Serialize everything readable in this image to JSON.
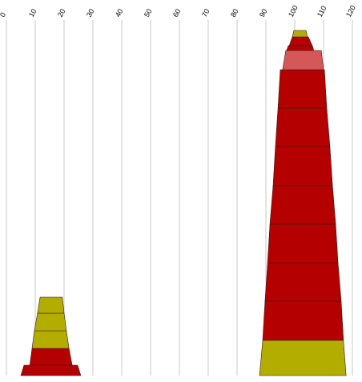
{
  "chart_data": {
    "type": "pyramid",
    "xlim": [
      0,
      120
    ],
    "xticks": [
      0,
      10,
      20,
      30,
      40,
      50,
      60,
      70,
      80,
      90,
      100,
      110,
      120
    ],
    "grid": true,
    "stacks": [
      {
        "layers": [
          {
            "color": "#b50000",
            "height": 13,
            "bottom": [
              5.0,
              25.8
            ],
            "top": [
              6.1,
              24.7
            ]
          },
          {
            "color": "#b50000",
            "height": 21,
            "bottom": [
              8.1,
              22.8
            ],
            "top": [
              8.9,
              21.7
            ]
          },
          {
            "color": "#b3ad00",
            "height": 22,
            "bottom": [
              8.9,
              21.7
            ],
            "top": [
              9.7,
              20.8
            ]
          },
          {
            "color": "#b3ad00",
            "height": 22,
            "bottom": [
              9.7,
              20.8
            ],
            "top": [
              10.8,
              20.0
            ]
          },
          {
            "color": "#b3ad00",
            "height": 20,
            "bottom": [
              10.8,
              20.0
            ],
            "top": [
              11.7,
              19.4
            ]
          }
        ]
      },
      {
        "layers": [
          {
            "color": "#b3ad00",
            "height": 44,
            "bottom": [
              87.8,
              117.8
            ],
            "top": [
              88.9,
              116.9
            ]
          },
          {
            "color": "#b50000",
            "height": 49,
            "bottom": [
              88.9,
              116.9
            ],
            "top": [
              89.7,
              116.1
            ]
          },
          {
            "color": "#b50000",
            "height": 48,
            "bottom": [
              89.7,
              116.1
            ],
            "top": [
              90.6,
              115.0
            ]
          },
          {
            "color": "#b50000",
            "height": 48,
            "bottom": [
              90.6,
              115.0
            ],
            "top": [
              91.4,
              114.2
            ]
          },
          {
            "color": "#b50000",
            "height": 48,
            "bottom": [
              91.4,
              114.2
            ],
            "top": [
              92.5,
              113.1
            ]
          },
          {
            "color": "#b50000",
            "height": 49,
            "bottom": [
              92.5,
              113.1
            ],
            "top": [
              93.3,
              112.2
            ]
          },
          {
            "color": "#b50000",
            "height": 48,
            "bottom": [
              93.3,
              112.2
            ],
            "top": [
              94.2,
              111.1
            ]
          },
          {
            "color": "#b50000",
            "height": 48,
            "bottom": [
              94.2,
              111.1
            ],
            "top": [
              95.0,
              110.3
            ]
          },
          {
            "color": "#d45858",
            "height": 24,
            "bottom": [
              95.8,
              110.0
            ],
            "top": [
              96.9,
              109.2
            ]
          },
          {
            "color": "#b50000",
            "height": 6,
            "bottom": [
              97.2,
              106.6
            ],
            "top": [
              97.8,
              106.1
            ]
          },
          {
            "color": "#b50000",
            "height": 11,
            "bottom": [
              98.1,
              106.1
            ],
            "top": [
              99.2,
              104.7
            ]
          },
          {
            "color": "#b3ad00",
            "height": 8,
            "bottom": [
              99.2,
              104.4
            ],
            "top": [
              99.7,
              103.9
            ]
          }
        ]
      }
    ]
  }
}
